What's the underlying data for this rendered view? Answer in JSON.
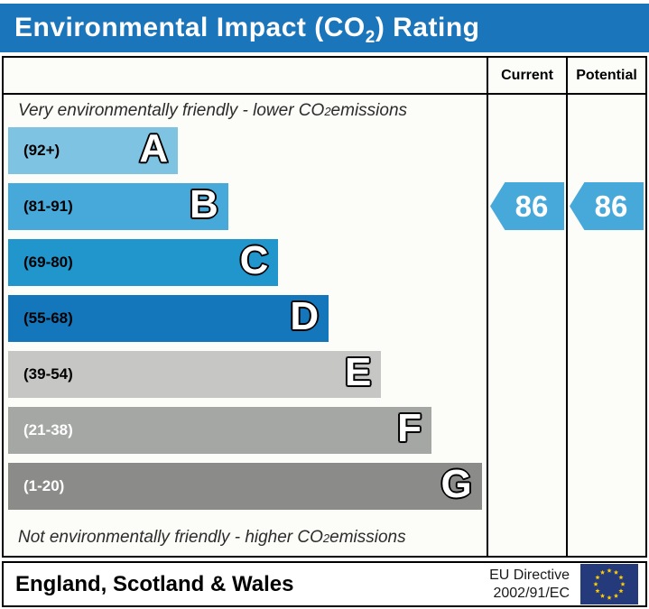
{
  "title": {
    "prefix": "Environmental Impact (CO",
    "sub": "2",
    "suffix": ") Rating"
  },
  "header": {
    "current": "Current",
    "potential": "Potential"
  },
  "top_note": {
    "prefix": "Very environmentally friendly - lower CO",
    "sub": "2",
    "suffix": " emissions"
  },
  "bottom_note": {
    "prefix": "Not environmentally friendly - higher CO",
    "sub": "2",
    "suffix": " emissions"
  },
  "footer": {
    "region": "England, Scotland & Wales",
    "directive_line1": "EU Directive",
    "directive_line2": "2002/91/EC"
  },
  "colors": {
    "title_bg": "#1b75ba",
    "arrow": "#47a8da",
    "border": "#000000",
    "chart_bg": "#fcfcf9"
  },
  "chart_data": {
    "type": "bar",
    "title": "Environmental Impact (CO2) Rating",
    "categories": [
      "A",
      "B",
      "C",
      "D",
      "E",
      "F",
      "G"
    ],
    "bands": [
      {
        "letter": "A",
        "range_label": "(92+)",
        "range_min": 92,
        "range_max": 100,
        "color": "#7fc3e3",
        "width_pct": 35.5,
        "label_color": "#000000"
      },
      {
        "letter": "B",
        "range_label": "(81-91)",
        "range_min": 81,
        "range_max": 91,
        "color": "#47a8da",
        "width_pct": 46.0,
        "label_color": "#000000"
      },
      {
        "letter": "C",
        "range_label": "(69-80)",
        "range_min": 69,
        "range_max": 80,
        "color": "#2196cd",
        "width_pct": 56.5,
        "label_color": "#000000"
      },
      {
        "letter": "D",
        "range_label": "(55-68)",
        "range_min": 55,
        "range_max": 68,
        "color": "#1577bb",
        "width_pct": 67.0,
        "label_color": "#000000"
      },
      {
        "letter": "E",
        "range_label": "(39-54)",
        "range_min": 39,
        "range_max": 54,
        "color": "#c6c7c5",
        "width_pct": 78.0,
        "label_color": "#000000"
      },
      {
        "letter": "F",
        "range_label": "(21-38)",
        "range_min": 21,
        "range_max": 38,
        "color": "#a5a7a4",
        "width_pct": 88.5,
        "label_color": "#ffffff"
      },
      {
        "letter": "G",
        "range_label": "(1-20)",
        "range_min": 1,
        "range_max": 20,
        "color": "#8b8b89",
        "width_pct": 99.0,
        "label_color": "#ffffff"
      }
    ],
    "current": {
      "value": 86,
      "band": "B"
    },
    "potential": {
      "value": 86,
      "band": "B"
    },
    "legend_position": "none",
    "grid": false
  }
}
